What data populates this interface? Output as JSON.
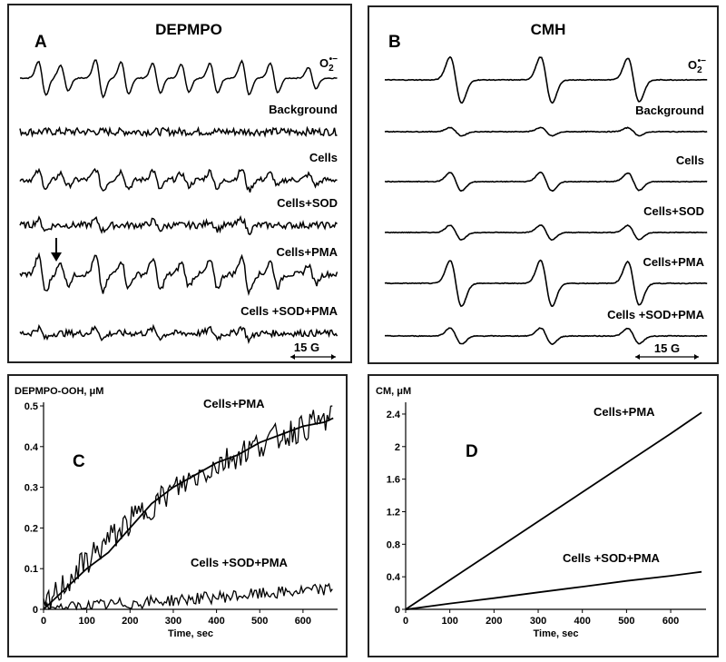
{
  "panelA": {
    "letter": "A",
    "title": "DEPMPO",
    "traces": [
      {
        "label": "O2•−",
        "label_main": "O",
        "label_sub": "2",
        "label_sup": "•−",
        "peaks": [
          [
            0.07,
            0.8
          ],
          [
            0.14,
            0.6
          ],
          [
            0.25,
            0.9
          ],
          [
            0.33,
            0.75
          ],
          [
            0.43,
            0.7
          ],
          [
            0.52,
            0.65
          ],
          [
            0.61,
            0.7
          ],
          [
            0.71,
            0.8
          ],
          [
            0.8,
            0.7
          ],
          [
            0.92,
            0.5
          ]
        ],
        "noise": 0.05
      },
      {
        "label": "Background",
        "peaks": [],
        "noise": 0.35
      },
      {
        "label": "Cells",
        "peaks": [
          [
            0.07,
            0.4
          ],
          [
            0.14,
            0.3
          ],
          [
            0.25,
            0.5
          ],
          [
            0.33,
            0.4
          ],
          [
            0.43,
            0.45
          ],
          [
            0.52,
            0.3
          ],
          [
            0.61,
            0.4
          ],
          [
            0.71,
            0.5
          ],
          [
            0.8,
            0.3
          ],
          [
            0.92,
            0.25
          ]
        ],
        "noise": 0.25
      },
      {
        "label": "Cells+SOD",
        "peaks": [
          [
            0.07,
            0.25
          ],
          [
            0.25,
            0.25
          ],
          [
            0.43,
            0.2
          ],
          [
            0.61,
            0.2
          ],
          [
            0.71,
            0.3
          ]
        ],
        "noise": 0.3
      },
      {
        "label": "Cells+PMA",
        "peaks": [
          [
            0.07,
            0.85
          ],
          [
            0.14,
            0.5
          ],
          [
            0.25,
            0.85
          ],
          [
            0.33,
            0.65
          ],
          [
            0.43,
            0.75
          ],
          [
            0.52,
            0.55
          ],
          [
            0.61,
            0.65
          ],
          [
            0.71,
            0.85
          ],
          [
            0.8,
            0.6
          ],
          [
            0.92,
            0.45
          ]
        ],
        "noise": 0.25
      },
      {
        "label": "Cells +SOD+PMA",
        "peaks": [
          [
            0.07,
            0.25
          ],
          [
            0.25,
            0.25
          ],
          [
            0.43,
            0.2
          ],
          [
            0.61,
            0.2
          ],
          [
            0.71,
            0.3
          ]
        ],
        "noise": 0.3
      }
    ],
    "scale": "15 G"
  },
  "panelB": {
    "letter": "B",
    "title": "CMH",
    "traces": [
      {
        "label": "O2•−",
        "label_main": "O",
        "label_sub": "2",
        "label_sup": "•−",
        "amp": 1.0
      },
      {
        "label": "Background",
        "amp": 0.18
      },
      {
        "label": "Cells",
        "amp": 0.4
      },
      {
        "label": "Cells+SOD",
        "amp": 0.32
      },
      {
        "label": "Cells+PMA",
        "amp": 1.0
      },
      {
        "label": "Cells +SOD+PMA",
        "amp": 0.35
      }
    ],
    "scale": "15 G"
  },
  "chart_data": [
    {
      "type": "line",
      "panel": "C",
      "ylabel": "DEPMPO-OOH, μM",
      "xlabel": "Time, sec",
      "xlim": [
        0,
        680
      ],
      "ylim": [
        0,
        0.5
      ],
      "xticks": [
        0,
        100,
        200,
        300,
        400,
        500,
        600
      ],
      "yticks": [
        0,
        0.1,
        0.2,
        0.3,
        0.4,
        0.5
      ],
      "series": [
        {
          "name": "Cells+PMA",
          "x": [
            0,
            50,
            100,
            150,
            200,
            250,
            300,
            350,
            400,
            450,
            500,
            550,
            600,
            650,
            670
          ],
          "y": [
            0.0,
            0.05,
            0.1,
            0.14,
            0.2,
            0.26,
            0.3,
            0.33,
            0.36,
            0.38,
            0.41,
            0.43,
            0.45,
            0.46,
            0.47
          ]
        },
        {
          "name": "Cells +SOD+PMA",
          "x": [
            0,
            50,
            100,
            150,
            200,
            250,
            300,
            350,
            400,
            450,
            500,
            550,
            600,
            650,
            670
          ],
          "y": [
            0.0,
            0.01,
            0.01,
            0.015,
            0.02,
            0.02,
            0.025,
            0.028,
            0.03,
            0.032,
            0.035,
            0.038,
            0.04,
            0.045,
            0.05
          ]
        }
      ]
    },
    {
      "type": "line",
      "panel": "D",
      "ylabel": "CM, μM",
      "xlabel": "Time, sec",
      "xlim": [
        0,
        680
      ],
      "ylim": [
        0,
        2.5
      ],
      "xticks": [
        0,
        100,
        200,
        300,
        400,
        500,
        600
      ],
      "yticks": [
        0,
        0.4,
        0.8,
        1.2,
        1.6,
        2.0,
        2.4
      ],
      "series": [
        {
          "name": "Cells+PMA",
          "x": [
            0,
            100,
            200,
            300,
            400,
            500,
            600,
            670
          ],
          "y": [
            0,
            0.36,
            0.72,
            1.08,
            1.44,
            1.8,
            2.16,
            2.42
          ]
        },
        {
          "name": "Cells +SOD+PMA",
          "x": [
            0,
            100,
            200,
            300,
            400,
            500,
            600,
            670
          ],
          "y": [
            0,
            0.07,
            0.14,
            0.21,
            0.28,
            0.35,
            0.41,
            0.46
          ]
        }
      ]
    }
  ]
}
